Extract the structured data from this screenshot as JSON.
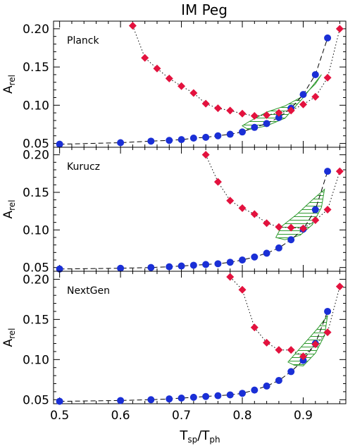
{
  "figure": {
    "title": "IM Peg",
    "xlabel_main": "T",
    "xlabel_sub1": "sp",
    "xlabel_slash": "/T",
    "xlabel_sub2": "ph",
    "ylabel_main": "A",
    "ylabel_sub": "rel"
  },
  "colors": {
    "blue_series": "#1a2fd6",
    "red_series": "#e3123e",
    "hatch_fill": "#2f9a2f",
    "frame": "#000000"
  },
  "chart_data": [
    {
      "type": "scatter",
      "panel_label": "Planck",
      "xlim": [
        0.49,
        0.97
      ],
      "ylim": [
        0.045,
        0.21
      ],
      "yticks": [
        0.05,
        0.1,
        0.15,
        0.2
      ],
      "xticks": [
        0.5,
        0.6,
        0.7,
        0.8,
        0.9
      ],
      "series": [
        {
          "marker": "circle",
          "line": "dashed",
          "color": "blue",
          "x": [
            0.5,
            0.6,
            0.65,
            0.68,
            0.7,
            0.72,
            0.74,
            0.76,
            0.78,
            0.8,
            0.82,
            0.84,
            0.86,
            0.88,
            0.9,
            0.92,
            0.94
          ],
          "y": [
            0.049,
            0.051,
            0.053,
            0.054,
            0.055,
            0.057,
            0.058,
            0.06,
            0.062,
            0.065,
            0.071,
            0.076,
            0.084,
            0.096,
            0.114,
            0.14,
            0.188
          ]
        },
        {
          "marker": "diamond",
          "line": "dotted",
          "color": "red",
          "x": [
            0.62,
            0.64,
            0.66,
            0.68,
            0.7,
            0.72,
            0.74,
            0.76,
            0.78,
            0.8,
            0.82,
            0.84,
            0.86,
            0.88,
            0.9,
            0.92,
            0.94,
            0.96
          ],
          "y": [
            0.204,
            0.162,
            0.148,
            0.135,
            0.125,
            0.116,
            0.102,
            0.096,
            0.093,
            0.089,
            0.086,
            0.087,
            0.09,
            0.093,
            0.101,
            0.111,
            0.136,
            0.2
          ]
        }
      ],
      "region": [
        [
          0.8,
          0.073
        ],
        [
          0.81,
          0.078
        ],
        [
          0.84,
          0.091
        ],
        [
          0.87,
          0.099
        ],
        [
          0.9,
          0.112
        ],
        [
          0.92,
          0.128
        ],
        [
          0.93,
          0.14
        ],
        [
          0.9,
          0.11
        ],
        [
          0.87,
          0.083
        ],
        [
          0.84,
          0.073
        ],
        [
          0.81,
          0.068
        ]
      ]
    },
    {
      "type": "scatter",
      "panel_label": "Kurucz",
      "xlim": [
        0.49,
        0.97
      ],
      "ylim": [
        0.045,
        0.21
      ],
      "yticks": [
        0.05,
        0.1,
        0.15,
        0.2
      ],
      "xticks": [
        0.5,
        0.6,
        0.7,
        0.8,
        0.9
      ],
      "series": [
        {
          "marker": "circle",
          "line": "dashed",
          "color": "blue",
          "x": [
            0.5,
            0.6,
            0.65,
            0.68,
            0.7,
            0.72,
            0.74,
            0.76,
            0.78,
            0.8,
            0.82,
            0.84,
            0.86,
            0.88,
            0.9,
            0.92,
            0.94
          ],
          "y": [
            0.048,
            0.049,
            0.05,
            0.051,
            0.052,
            0.053,
            0.054,
            0.055,
            0.057,
            0.06,
            0.064,
            0.069,
            0.076,
            0.087,
            0.101,
            0.127,
            0.178
          ]
        },
        {
          "marker": "diamond",
          "line": "dotted",
          "color": "red",
          "x": [
            0.74,
            0.76,
            0.78,
            0.8,
            0.82,
            0.84,
            0.86,
            0.88,
            0.9,
            0.92,
            0.94,
            0.96
          ],
          "y": [
            0.2,
            0.164,
            0.139,
            0.129,
            0.121,
            0.109,
            0.104,
            0.103,
            0.102,
            0.113,
            0.127,
            0.178
          ]
        }
      ],
      "region": [
        [
          0.855,
          0.09
        ],
        [
          0.865,
          0.105
        ],
        [
          0.89,
          0.121
        ],
        [
          0.915,
          0.14
        ],
        [
          0.935,
          0.154
        ],
        [
          0.93,
          0.13
        ],
        [
          0.915,
          0.107
        ],
        [
          0.895,
          0.093
        ],
        [
          0.87,
          0.087
        ]
      ]
    },
    {
      "type": "scatter",
      "panel_label": "NextGen",
      "xlim": [
        0.49,
        0.97
      ],
      "ylim": [
        0.045,
        0.21
      ],
      "yticks": [
        0.05,
        0.1,
        0.15,
        0.2
      ],
      "xticks": [
        0.5,
        0.6,
        0.7,
        0.8,
        0.9
      ],
      "series": [
        {
          "marker": "circle",
          "line": "dashed",
          "color": "blue",
          "x": [
            0.5,
            0.6,
            0.65,
            0.68,
            0.7,
            0.72,
            0.74,
            0.76,
            0.78,
            0.8,
            0.82,
            0.84,
            0.86,
            0.88,
            0.9,
            0.92,
            0.94
          ],
          "y": [
            0.048,
            0.049,
            0.05,
            0.051,
            0.052,
            0.053,
            0.054,
            0.055,
            0.056,
            0.058,
            0.062,
            0.067,
            0.074,
            0.085,
            0.099,
            0.12,
            0.16
          ]
        },
        {
          "marker": "diamond",
          "line": "dotted",
          "color": "red",
          "x": [
            0.78,
            0.8,
            0.82,
            0.84,
            0.86,
            0.88,
            0.9,
            0.92,
            0.94,
            0.96
          ],
          "y": [
            0.203,
            0.187,
            0.14,
            0.121,
            0.112,
            0.112,
            0.104,
            0.119,
            0.134,
            0.191
          ]
        }
      ],
      "region": [
        [
          0.875,
          0.097
        ],
        [
          0.89,
          0.11
        ],
        [
          0.91,
          0.127
        ],
        [
          0.925,
          0.14
        ],
        [
          0.94,
          0.155
        ],
        [
          0.935,
          0.13
        ],
        [
          0.92,
          0.108
        ],
        [
          0.9,
          0.092
        ],
        [
          0.885,
          0.093
        ]
      ]
    }
  ]
}
